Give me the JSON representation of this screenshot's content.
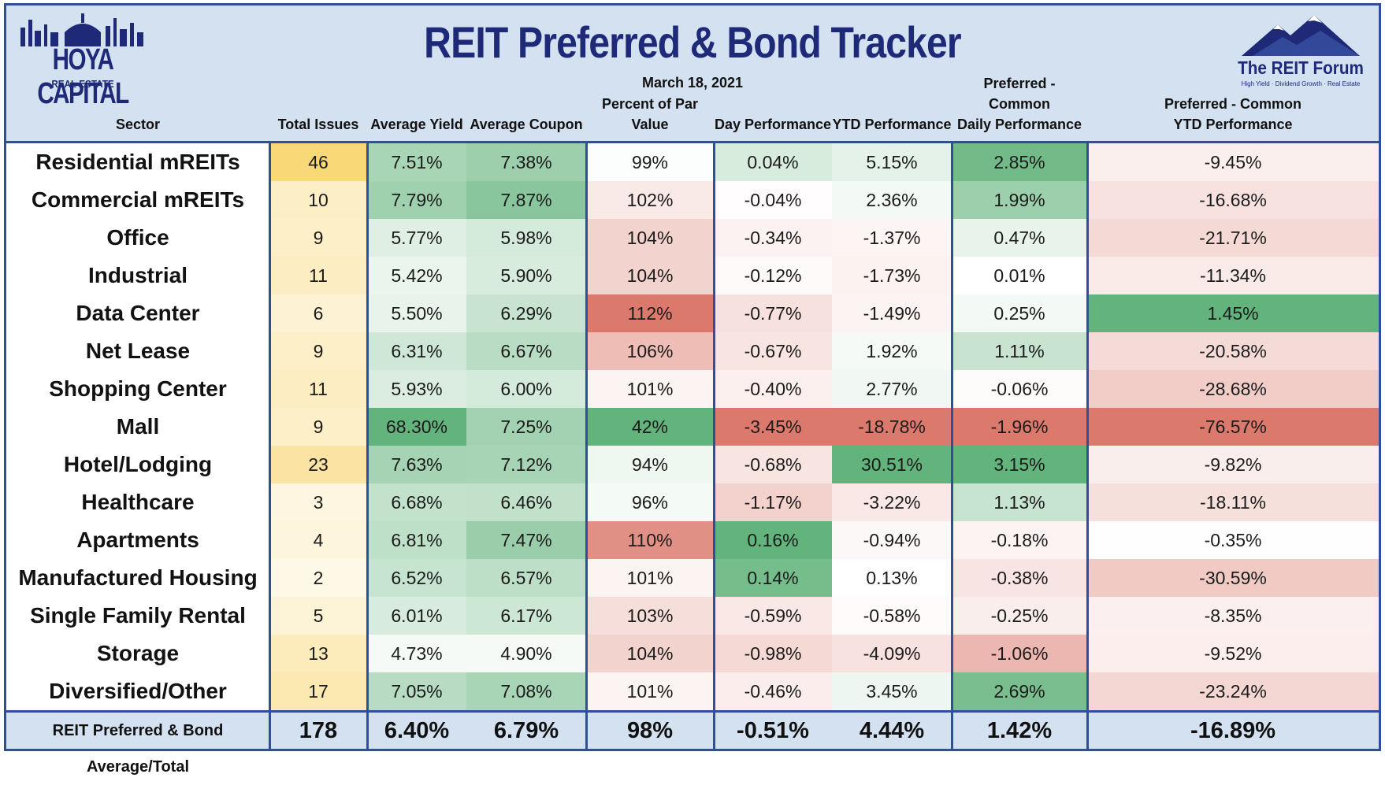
{
  "title": "REIT Preferred & Bond Tracker",
  "date": "March 18, 2021",
  "logos": {
    "left": {
      "line1": "HOYA CAPITAL",
      "line2": "REAL ESTATE"
    },
    "right": {
      "line1": "The REIT Forum",
      "line2": "High Yield · Dividend Growth · Real Estate"
    }
  },
  "colors": {
    "border": "#2f4f9e",
    "header_bg": "#d3e1f1",
    "title": "#1e2a78",
    "positive": "#63b37c",
    "negative": "#db7a6c",
    "highlight": "#f9d878"
  },
  "chart_data": {
    "type": "table",
    "title": "REIT Preferred & Bond Tracker",
    "columns": [
      "Sector",
      "Total Issues",
      "Average Yield",
      "Average Coupon",
      "Percent of Par Value",
      "Day Performance",
      "YTD Performance",
      "Preferred - Common\nDaily Performance",
      "Preferred - Common\nYTD Performance"
    ],
    "rows": [
      [
        "Residential mREITs",
        "46",
        "7.51%",
        "7.38%",
        "99%",
        "0.04%",
        "5.15%",
        "2.85%",
        "-9.45%"
      ],
      [
        "Commercial mREITs",
        "10",
        "7.79%",
        "7.87%",
        "102%",
        "-0.04%",
        "2.36%",
        "1.99%",
        "-16.68%"
      ],
      [
        "Office",
        "9",
        "5.77%",
        "5.98%",
        "104%",
        "-0.34%",
        "-1.37%",
        "0.47%",
        "-21.71%"
      ],
      [
        "Industrial",
        "11",
        "5.42%",
        "5.90%",
        "104%",
        "-0.12%",
        "-1.73%",
        "0.01%",
        "-11.34%"
      ],
      [
        "Data Center",
        "6",
        "5.50%",
        "6.29%",
        "112%",
        "-0.77%",
        "-1.49%",
        "0.25%",
        "1.45%"
      ],
      [
        "Net Lease",
        "9",
        "6.31%",
        "6.67%",
        "106%",
        "-0.67%",
        "1.92%",
        "1.11%",
        "-20.58%"
      ],
      [
        "Shopping Center",
        "11",
        "5.93%",
        "6.00%",
        "101%",
        "-0.40%",
        "2.77%",
        "-0.06%",
        "-28.68%"
      ],
      [
        "Mall",
        "9",
        "68.30%",
        "7.25%",
        "42%",
        "-3.45%",
        "-18.78%",
        "-1.96%",
        "-76.57%"
      ],
      [
        "Hotel/Lodging",
        "23",
        "7.63%",
        "7.12%",
        "94%",
        "-0.68%",
        "30.51%",
        "3.15%",
        "-9.82%"
      ],
      [
        "Healthcare",
        "3",
        "6.68%",
        "6.46%",
        "96%",
        "-1.17%",
        "-3.22%",
        "1.13%",
        "-18.11%"
      ],
      [
        "Apartments",
        "4",
        "6.81%",
        "7.47%",
        "110%",
        "0.16%",
        "-0.94%",
        "-0.18%",
        "-0.35%"
      ],
      [
        "Manufactured Housing",
        "2",
        "6.52%",
        "6.57%",
        "101%",
        "0.14%",
        "0.13%",
        "-0.38%",
        "-30.59%"
      ],
      [
        "Single Family Rental",
        "5",
        "6.01%",
        "6.17%",
        "103%",
        "-0.59%",
        "-0.58%",
        "-0.25%",
        "-8.35%"
      ],
      [
        "Storage",
        "13",
        "4.73%",
        "4.90%",
        "104%",
        "-0.98%",
        "-4.09%",
        "-1.06%",
        "-9.52%"
      ],
      [
        "Diversified/Other",
        "17",
        "7.05%",
        "7.08%",
        "101%",
        "-0.46%",
        "3.45%",
        "2.69%",
        "-23.24%"
      ]
    ],
    "total": [
      "REIT Preferred & Bond Average/Total",
      "178",
      "6.40%",
      "6.79%",
      "98%",
      "-0.51%",
      "4.44%",
      "1.42%",
      "-16.89%"
    ]
  }
}
